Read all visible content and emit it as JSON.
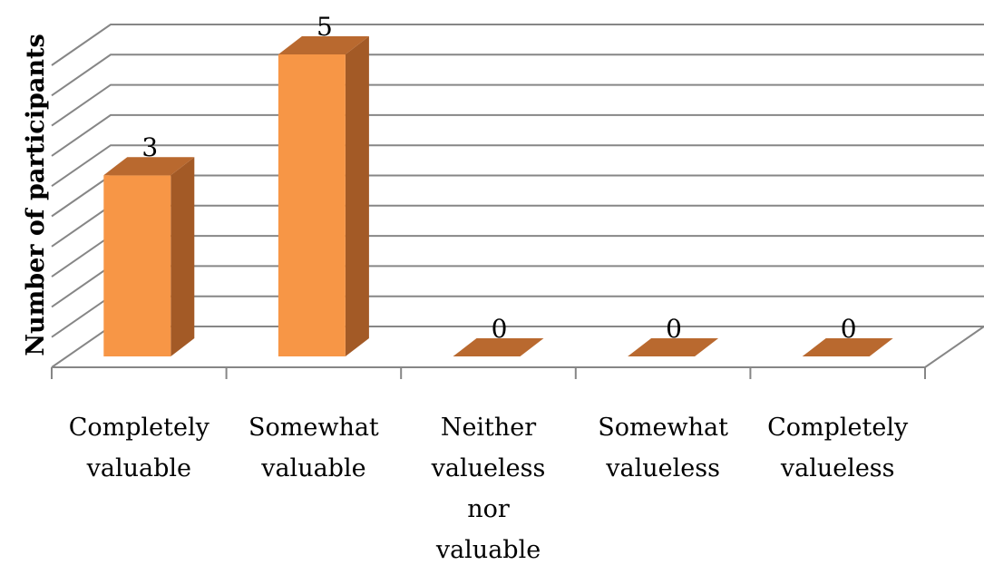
{
  "chart_data": {
    "type": "bar",
    "three_d": true,
    "title": "",
    "xlabel": "",
    "ylabel": "Number of participants",
    "categories": [
      "Completely valuable",
      "Somewhat valuable",
      "Neither valueless nor valuable",
      "Somewhat valueless",
      "Completely valueless"
    ],
    "category_lines": [
      [
        "Completely",
        "valuable"
      ],
      [
        "Somewhat",
        "valuable"
      ],
      [
        "Neither",
        "valueless",
        "nor",
        "valuable"
      ],
      [
        "Somewhat",
        "valueless"
      ],
      [
        "Completely",
        "valueless"
      ]
    ],
    "values": [
      3,
      5,
      0,
      0,
      0
    ],
    "data_labels": [
      "3",
      "5",
      "0",
      "0",
      "0"
    ],
    "ylim": [
      0,
      5
    ],
    "gridlines": true,
    "legend": "none",
    "colors": {
      "bar_front": "#F79646",
      "bar_top": "#B9692F",
      "bar_side": "#A35A26",
      "grid": "#868686"
    }
  }
}
